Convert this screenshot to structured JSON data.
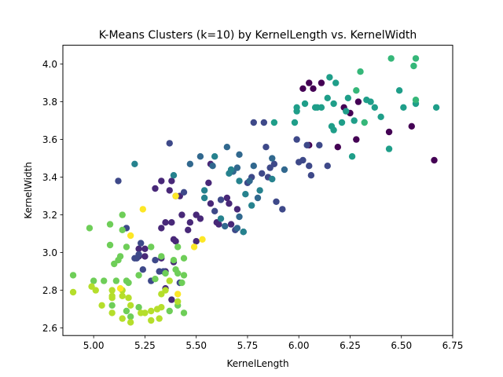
{
  "chart_data": {
    "type": "scatter",
    "title": "K-Means Clusters (k=10) by KernelLength vs. KernelWidth",
    "xlabel": "KernelLength",
    "ylabel": "KernelWidth",
    "xlim": [
      4.85,
      6.75
    ],
    "ylim": [
      2.56,
      4.1
    ],
    "xticks": [
      5.0,
      5.25,
      5.5,
      5.75,
      6.0,
      6.25,
      6.5,
      6.75
    ],
    "xtick_labels": [
      "5.00",
      "5.25",
      "5.50",
      "5.75",
      "6.00",
      "6.25",
      "6.50",
      "6.75"
    ],
    "yticks": [
      2.6,
      2.8,
      3.0,
      3.2,
      3.4,
      3.6,
      3.8,
      4.0
    ],
    "ytick_labels": [
      "2.6",
      "2.8",
      "3.0",
      "3.2",
      "3.4",
      "3.6",
      "3.8",
      "4.0"
    ],
    "grid": false,
    "legend": "none",
    "colormap": "viridis",
    "cluster_colors": [
      "#440154",
      "#482878",
      "#3e4989",
      "#31688e",
      "#26828e",
      "#1f9e89",
      "#35b779",
      "#6ece58",
      "#b5de2b",
      "#fde725"
    ],
    "points": [
      {
        "x": 6.05,
        "y": 3.9,
        "c": 0
      },
      {
        "x": 6.11,
        "y": 3.9,
        "c": 0
      },
      {
        "x": 6.02,
        "y": 3.87,
        "c": 0
      },
      {
        "x": 6.07,
        "y": 3.87,
        "c": 0
      },
      {
        "x": 6.22,
        "y": 3.77,
        "c": 0
      },
      {
        "x": 6.25,
        "y": 3.74,
        "c": 0
      },
      {
        "x": 6.29,
        "y": 3.8,
        "c": 0
      },
      {
        "x": 6.05,
        "y": 3.57,
        "c": 0
      },
      {
        "x": 6.19,
        "y": 3.56,
        "c": 0
      },
      {
        "x": 6.28,
        "y": 3.6,
        "c": 0
      },
      {
        "x": 6.44,
        "y": 3.64,
        "c": 0
      },
      {
        "x": 6.55,
        "y": 3.67,
        "c": 0
      },
      {
        "x": 6.66,
        "y": 3.49,
        "c": 0
      },
      {
        "x": 5.38,
        "y": 3.38,
        "c": 1
      },
      {
        "x": 5.33,
        "y": 3.38,
        "c": 1
      },
      {
        "x": 5.37,
        "y": 3.33,
        "c": 1
      },
      {
        "x": 5.3,
        "y": 3.34,
        "c": 1
      },
      {
        "x": 5.4,
        "y": 3.3,
        "c": 1
      },
      {
        "x": 5.42,
        "y": 3.3,
        "c": 1
      },
      {
        "x": 5.43,
        "y": 3.2,
        "c": 1
      },
      {
        "x": 5.35,
        "y": 3.16,
        "c": 1
      },
      {
        "x": 5.38,
        "y": 3.16,
        "c": 1
      },
      {
        "x": 5.33,
        "y": 3.13,
        "c": 1
      },
      {
        "x": 5.47,
        "y": 3.16,
        "c": 1
      },
      {
        "x": 5.5,
        "y": 3.2,
        "c": 1
      },
      {
        "x": 5.52,
        "y": 3.18,
        "c": 1
      },
      {
        "x": 5.46,
        "y": 3.12,
        "c": 1
      },
      {
        "x": 5.5,
        "y": 3.06,
        "c": 1
      },
      {
        "x": 5.39,
        "y": 3.07,
        "c": 1
      },
      {
        "x": 5.4,
        "y": 3.06,
        "c": 1
      },
      {
        "x": 5.57,
        "y": 3.26,
        "c": 1
      },
      {
        "x": 5.6,
        "y": 3.16,
        "c": 1
      },
      {
        "x": 5.61,
        "y": 3.15,
        "c": 1
      },
      {
        "x": 5.65,
        "y": 3.29,
        "c": 1
      },
      {
        "x": 5.66,
        "y": 3.26,
        "c": 1
      },
      {
        "x": 5.67,
        "y": 3.15,
        "c": 1
      },
      {
        "x": 5.7,
        "y": 3.23,
        "c": 1
      },
      {
        "x": 5.56,
        "y": 3.37,
        "c": 1
      },
      {
        "x": 5.57,
        "y": 3.47,
        "c": 1
      },
      {
        "x": 5.22,
        "y": 2.98,
        "c": 1
      },
      {
        "x": 5.25,
        "y": 2.98,
        "c": 1
      },
      {
        "x": 5.33,
        "y": 2.97,
        "c": 1
      },
      {
        "x": 5.35,
        "y": 2.9,
        "c": 1
      },
      {
        "x": 5.39,
        "y": 2.95,
        "c": 1
      },
      {
        "x": 5.22,
        "y": 3.02,
        "c": 1
      },
      {
        "x": 5.25,
        "y": 3.02,
        "c": 1
      },
      {
        "x": 5.38,
        "y": 2.75,
        "c": 1
      },
      {
        "x": 5.35,
        "y": 2.81,
        "c": 1
      },
      {
        "x": 5.12,
        "y": 3.38,
        "c": 2
      },
      {
        "x": 5.37,
        "y": 3.58,
        "c": 2
      },
      {
        "x": 5.16,
        "y": 3.13,
        "c": 2
      },
      {
        "x": 5.2,
        "y": 2.97,
        "c": 2
      },
      {
        "x": 5.22,
        "y": 2.99,
        "c": 2
      },
      {
        "x": 5.23,
        "y": 3.05,
        "c": 2
      },
      {
        "x": 5.21,
        "y": 2.97,
        "c": 2
      },
      {
        "x": 5.28,
        "y": 2.85,
        "c": 2
      },
      {
        "x": 5.24,
        "y": 2.91,
        "c": 2
      },
      {
        "x": 5.34,
        "y": 2.9,
        "c": 2
      },
      {
        "x": 5.32,
        "y": 2.9,
        "c": 2
      },
      {
        "x": 5.3,
        "y": 2.96,
        "c": 2
      },
      {
        "x": 5.42,
        "y": 2.84,
        "c": 2
      },
      {
        "x": 5.75,
        "y": 3.37,
        "c": 2
      },
      {
        "x": 5.77,
        "y": 3.4,
        "c": 2
      },
      {
        "x": 5.85,
        "y": 3.4,
        "c": 2
      },
      {
        "x": 5.86,
        "y": 3.45,
        "c": 2
      },
      {
        "x": 5.88,
        "y": 3.47,
        "c": 2
      },
      {
        "x": 5.89,
        "y": 3.27,
        "c": 2
      },
      {
        "x": 5.92,
        "y": 3.23,
        "c": 2
      },
      {
        "x": 5.82,
        "y": 3.42,
        "c": 2
      },
      {
        "x": 5.84,
        "y": 3.56,
        "c": 2
      },
      {
        "x": 5.78,
        "y": 3.69,
        "c": 2
      },
      {
        "x": 5.83,
        "y": 3.69,
        "c": 2
      },
      {
        "x": 6.0,
        "y": 3.48,
        "c": 2
      },
      {
        "x": 6.02,
        "y": 3.49,
        "c": 2
      },
      {
        "x": 5.99,
        "y": 3.6,
        "c": 2
      },
      {
        "x": 6.04,
        "y": 3.57,
        "c": 2
      },
      {
        "x": 6.05,
        "y": 3.46,
        "c": 2
      },
      {
        "x": 6.1,
        "y": 3.57,
        "c": 2
      },
      {
        "x": 6.14,
        "y": 3.46,
        "c": 2
      },
      {
        "x": 6.06,
        "y": 3.41,
        "c": 2
      },
      {
        "x": 5.62,
        "y": 3.28,
        "c": 2
      },
      {
        "x": 5.59,
        "y": 3.22,
        "c": 2
      },
      {
        "x": 5.69,
        "y": 3.12,
        "c": 2
      },
      {
        "x": 5.73,
        "y": 3.11,
        "c": 2
      },
      {
        "x": 5.44,
        "y": 3.32,
        "c": 2
      },
      {
        "x": 5.47,
        "y": 3.47,
        "c": 3
      },
      {
        "x": 5.52,
        "y": 3.51,
        "c": 3
      },
      {
        "x": 5.58,
        "y": 3.46,
        "c": 3
      },
      {
        "x": 5.65,
        "y": 3.56,
        "c": 3
      },
      {
        "x": 5.7,
        "y": 3.45,
        "c": 3
      },
      {
        "x": 5.71,
        "y": 3.52,
        "c": 3
      },
      {
        "x": 5.68,
        "y": 3.43,
        "c": 3
      },
      {
        "x": 5.76,
        "y": 3.38,
        "c": 3
      },
      {
        "x": 5.78,
        "y": 3.46,
        "c": 3
      },
      {
        "x": 5.8,
        "y": 3.29,
        "c": 3
      },
      {
        "x": 5.87,
        "y": 3.5,
        "c": 3
      },
      {
        "x": 5.93,
        "y": 3.44,
        "c": 3
      },
      {
        "x": 5.64,
        "y": 3.14,
        "c": 3
      },
      {
        "x": 5.71,
        "y": 3.19,
        "c": 3
      },
      {
        "x": 5.7,
        "y": 3.13,
        "c": 3
      },
      {
        "x": 5.2,
        "y": 3.47,
        "c": 4
      },
      {
        "x": 5.39,
        "y": 3.41,
        "c": 4
      },
      {
        "x": 5.54,
        "y": 3.33,
        "c": 4
      },
      {
        "x": 5.54,
        "y": 3.29,
        "c": 4
      },
      {
        "x": 5.59,
        "y": 3.51,
        "c": 4
      },
      {
        "x": 5.66,
        "y": 3.42,
        "c": 4
      },
      {
        "x": 5.67,
        "y": 3.44,
        "c": 4
      },
      {
        "x": 5.71,
        "y": 3.38,
        "c": 4
      },
      {
        "x": 5.74,
        "y": 3.31,
        "c": 4
      },
      {
        "x": 5.77,
        "y": 3.25,
        "c": 4
      },
      {
        "x": 5.62,
        "y": 3.18,
        "c": 4
      },
      {
        "x": 5.87,
        "y": 3.39,
        "c": 4
      },
      {
        "x": 5.81,
        "y": 3.33,
        "c": 4
      },
      {
        "x": 5.73,
        "y": 3.11,
        "c": 4
      },
      {
        "x": 5.98,
        "y": 3.69,
        "c": 5
      },
      {
        "x": 5.99,
        "y": 3.75,
        "c": 5
      },
      {
        "x": 5.99,
        "y": 3.77,
        "c": 5
      },
      {
        "x": 6.03,
        "y": 3.79,
        "c": 5
      },
      {
        "x": 6.09,
        "y": 3.77,
        "c": 5
      },
      {
        "x": 6.11,
        "y": 3.77,
        "c": 5
      },
      {
        "x": 6.14,
        "y": 3.82,
        "c": 5
      },
      {
        "x": 6.17,
        "y": 3.79,
        "c": 5
      },
      {
        "x": 6.15,
        "y": 3.93,
        "c": 5
      },
      {
        "x": 6.18,
        "y": 3.9,
        "c": 5
      },
      {
        "x": 6.24,
        "y": 3.82,
        "c": 5
      },
      {
        "x": 6.27,
        "y": 3.7,
        "c": 5
      },
      {
        "x": 6.33,
        "y": 3.81,
        "c": 5
      },
      {
        "x": 6.35,
        "y": 3.8,
        "c": 5
      },
      {
        "x": 6.37,
        "y": 3.77,
        "c": 5
      },
      {
        "x": 6.4,
        "y": 3.72,
        "c": 5
      },
      {
        "x": 6.23,
        "y": 3.75,
        "c": 5
      },
      {
        "x": 6.49,
        "y": 3.86,
        "c": 5
      },
      {
        "x": 6.51,
        "y": 3.77,
        "c": 5
      },
      {
        "x": 6.57,
        "y": 3.79,
        "c": 5
      },
      {
        "x": 6.67,
        "y": 3.77,
        "c": 5
      },
      {
        "x": 6.44,
        "y": 3.55,
        "c": 5
      },
      {
        "x": 6.26,
        "y": 3.51,
        "c": 5
      },
      {
        "x": 6.17,
        "y": 3.65,
        "c": 5
      },
      {
        "x": 6.16,
        "y": 3.67,
        "c": 5
      },
      {
        "x": 6.21,
        "y": 3.69,
        "c": 5
      },
      {
        "x": 5.88,
        "y": 3.69,
        "c": 5
      },
      {
        "x": 6.08,
        "y": 3.77,
        "c": 5
      },
      {
        "x": 6.3,
        "y": 3.96,
        "c": 6
      },
      {
        "x": 6.45,
        "y": 4.03,
        "c": 6
      },
      {
        "x": 6.57,
        "y": 4.03,
        "c": 6
      },
      {
        "x": 6.56,
        "y": 3.99,
        "c": 6
      },
      {
        "x": 6.57,
        "y": 3.81,
        "c": 6
      },
      {
        "x": 6.28,
        "y": 3.86,
        "c": 6
      },
      {
        "x": 6.32,
        "y": 3.69,
        "c": 6
      },
      {
        "x": 4.98,
        "y": 3.13,
        "c": 7
      },
      {
        "x": 5.08,
        "y": 3.15,
        "c": 7
      },
      {
        "x": 5.14,
        "y": 3.2,
        "c": 7
      },
      {
        "x": 5.14,
        "y": 3.12,
        "c": 7
      },
      {
        "x": 5.08,
        "y": 3.04,
        "c": 7
      },
      {
        "x": 5.13,
        "y": 2.98,
        "c": 7
      },
      {
        "x": 5.12,
        "y": 2.96,
        "c": 7
      },
      {
        "x": 5.1,
        "y": 2.94,
        "c": 7
      },
      {
        "x": 5.16,
        "y": 3.03,
        "c": 7
      },
      {
        "x": 5.28,
        "y": 3.03,
        "c": 7
      },
      {
        "x": 4.9,
        "y": 2.88,
        "c": 7
      },
      {
        "x": 5.0,
        "y": 2.85,
        "c": 7
      },
      {
        "x": 5.05,
        "y": 2.85,
        "c": 7
      },
      {
        "x": 5.11,
        "y": 2.85,
        "c": 7
      },
      {
        "x": 5.16,
        "y": 2.85,
        "c": 7
      },
      {
        "x": 5.22,
        "y": 2.88,
        "c": 7
      },
      {
        "x": 5.3,
        "y": 2.86,
        "c": 7
      },
      {
        "x": 5.35,
        "y": 2.89,
        "c": 7
      },
      {
        "x": 5.4,
        "y": 2.91,
        "c": 7
      },
      {
        "x": 5.41,
        "y": 2.89,
        "c": 7
      },
      {
        "x": 5.43,
        "y": 2.84,
        "c": 7
      },
      {
        "x": 5.44,
        "y": 2.88,
        "c": 7
      },
      {
        "x": 5.44,
        "y": 2.97,
        "c": 7
      },
      {
        "x": 5.39,
        "y": 2.96,
        "c": 7
      },
      {
        "x": 5.41,
        "y": 3.03,
        "c": 7
      },
      {
        "x": 5.33,
        "y": 2.98,
        "c": 7
      },
      {
        "x": 5.18,
        "y": 2.66,
        "c": 7
      },
      {
        "x": 5.09,
        "y": 2.72,
        "c": 7
      },
      {
        "x": 5.16,
        "y": 2.69,
        "c": 7
      },
      {
        "x": 5.37,
        "y": 2.69,
        "c": 7
      },
      {
        "x": 5.41,
        "y": 2.72,
        "c": 7
      },
      {
        "x": 5.44,
        "y": 2.68,
        "c": 7
      },
      {
        "x": 5.22,
        "y": 2.71,
        "c": 7
      },
      {
        "x": 5.17,
        "y": 2.84,
        "c": 7
      },
      {
        "x": 4.9,
        "y": 2.79,
        "c": 8
      },
      {
        "x": 4.99,
        "y": 2.82,
        "c": 8
      },
      {
        "x": 5.01,
        "y": 2.8,
        "c": 8
      },
      {
        "x": 5.04,
        "y": 2.72,
        "c": 8
      },
      {
        "x": 5.09,
        "y": 2.8,
        "c": 8
      },
      {
        "x": 5.09,
        "y": 2.77,
        "c": 8
      },
      {
        "x": 5.09,
        "y": 2.68,
        "c": 8
      },
      {
        "x": 5.14,
        "y": 2.77,
        "c": 8
      },
      {
        "x": 5.14,
        "y": 2.8,
        "c": 8
      },
      {
        "x": 5.14,
        "y": 2.65,
        "c": 8
      },
      {
        "x": 5.17,
        "y": 2.76,
        "c": 8
      },
      {
        "x": 5.18,
        "y": 2.72,
        "c": 8
      },
      {
        "x": 5.18,
        "y": 2.63,
        "c": 8
      },
      {
        "x": 5.23,
        "y": 2.68,
        "c": 8
      },
      {
        "x": 5.25,
        "y": 2.68,
        "c": 8
      },
      {
        "x": 5.28,
        "y": 2.69,
        "c": 8
      },
      {
        "x": 5.28,
        "y": 2.64,
        "c": 8
      },
      {
        "x": 5.31,
        "y": 2.7,
        "c": 8
      },
      {
        "x": 5.32,
        "y": 2.65,
        "c": 8
      },
      {
        "x": 5.33,
        "y": 2.71,
        "c": 8
      },
      {
        "x": 5.35,
        "y": 2.8,
        "c": 8
      },
      {
        "x": 5.37,
        "y": 2.85,
        "c": 8
      },
      {
        "x": 5.41,
        "y": 2.74,
        "c": 8
      },
      {
        "x": 5.33,
        "y": 2.78,
        "c": 8
      },
      {
        "x": 5.09,
        "y": 2.76,
        "c": 8
      },
      {
        "x": 5.24,
        "y": 3.23,
        "c": 9
      },
      {
        "x": 5.4,
        "y": 3.3,
        "c": 9
      },
      {
        "x": 5.18,
        "y": 3.09,
        "c": 9
      },
      {
        "x": 5.49,
        "y": 3.03,
        "c": 9
      },
      {
        "x": 5.53,
        "y": 3.07,
        "c": 9
      },
      {
        "x": 5.41,
        "y": 2.78,
        "c": 9
      },
      {
        "x": 5.13,
        "y": 2.81,
        "c": 9
      }
    ]
  }
}
